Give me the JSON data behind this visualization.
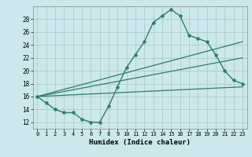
{
  "xlabel": "Humidex (Indice chaleur)",
  "bg_color": "#cce8ec",
  "grid_color": "#aacccc",
  "line_color": "#2e7d6e",
  "x_ticks": [
    0,
    1,
    2,
    3,
    4,
    5,
    6,
    7,
    8,
    9,
    10,
    11,
    12,
    13,
    14,
    15,
    16,
    17,
    18,
    19,
    20,
    21,
    22,
    23
  ],
  "y_ticks": [
    12,
    14,
    16,
    18,
    20,
    22,
    24,
    26,
    28
  ],
  "xlim": [
    -0.5,
    23.5
  ],
  "ylim": [
    11.0,
    30.0
  ],
  "line1_x": [
    0,
    1,
    2,
    3,
    4,
    5,
    6,
    7,
    8,
    9,
    10,
    11,
    12,
    13,
    14,
    15,
    16,
    17,
    18,
    19,
    20,
    21,
    22,
    23
  ],
  "line1_y": [
    16.0,
    15.0,
    14.0,
    13.5,
    13.5,
    12.5,
    12.0,
    12.0,
    14.5,
    17.5,
    20.5,
    22.5,
    24.5,
    27.5,
    28.5,
    29.5,
    28.5,
    25.5,
    25.0,
    24.5,
    22.5,
    20.0,
    18.5,
    18.0
  ],
  "line2_x": [
    0,
    23
  ],
  "line2_y": [
    16.0,
    17.5
  ],
  "line3_x": [
    0,
    23
  ],
  "line3_y": [
    16.0,
    22.0
  ],
  "line4_x": [
    0,
    23
  ],
  "line4_y": [
    16.0,
    24.5
  ]
}
